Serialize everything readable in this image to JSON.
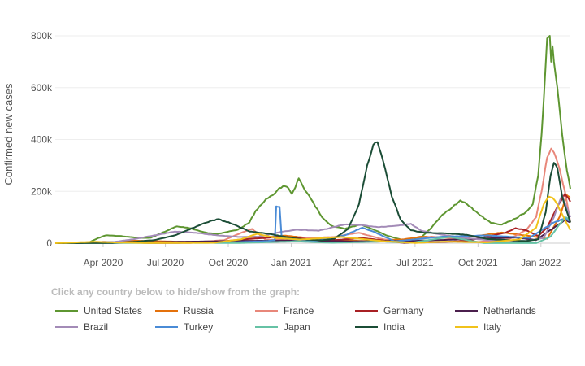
{
  "chart_data": {
    "type": "line",
    "ylabel": "Confirmed new cases",
    "xlabel": "",
    "x_ticks": [
      "Apr 2020",
      "Jul 2020",
      "Oct 2020",
      "Jan 2021",
      "Apr 2021",
      "Jul 2021",
      "Oct 2021",
      "Jan 2022"
    ],
    "y_ticks": [
      "0",
      "200k",
      "400k",
      "600k",
      "800k"
    ],
    "ylim": [
      0,
      800000
    ],
    "xlim": [
      "2020-01-22",
      "2022-02-13"
    ],
    "grid": true,
    "legend_placement": "bottom",
    "series": [
      {
        "name": "United States",
        "color": "#5e9631",
        "points": [
          [
            "2020-01-22",
            0
          ],
          [
            "2020-03-10",
            1000
          ],
          [
            "2020-03-25",
            20000
          ],
          [
            "2020-04-05",
            30000
          ],
          [
            "2020-04-25",
            28000
          ],
          [
            "2020-05-25",
            20000
          ],
          [
            "2020-06-10",
            21000
          ],
          [
            "2020-06-28",
            42000
          ],
          [
            "2020-07-18",
            65000
          ],
          [
            "2020-08-05",
            58000
          ],
          [
            "2020-09-01",
            39000
          ],
          [
            "2020-09-15",
            36000
          ],
          [
            "2020-10-15",
            52000
          ],
          [
            "2020-11-01",
            80000
          ],
          [
            "2020-11-10",
            125000
          ],
          [
            "2020-11-25",
            170000
          ],
          [
            "2020-12-05",
            185000
          ],
          [
            "2020-12-12",
            205000
          ],
          [
            "2020-12-20",
            220000
          ],
          [
            "2020-12-28",
            212000
          ],
          [
            "2021-01-02",
            190000
          ],
          [
            "2021-01-07",
            215000
          ],
          [
            "2021-01-12",
            250000
          ],
          [
            "2021-01-18",
            220000
          ],
          [
            "2021-01-30",
            170000
          ],
          [
            "2021-02-15",
            100000
          ],
          [
            "2021-03-01",
            67000
          ],
          [
            "2021-03-20",
            55000
          ],
          [
            "2021-04-12",
            72000
          ],
          [
            "2021-05-01",
            53000
          ],
          [
            "2021-05-20",
            30000
          ],
          [
            "2021-06-10",
            14000
          ],
          [
            "2021-06-25",
            12000
          ],
          [
            "2021-07-10",
            22000
          ],
          [
            "2021-07-25",
            60000
          ],
          [
            "2021-08-10",
            110000
          ],
          [
            "2021-08-25",
            140000
          ],
          [
            "2021-09-05",
            165000
          ],
          [
            "2021-09-15",
            150000
          ],
          [
            "2021-10-01",
            115000
          ],
          [
            "2021-10-20",
            78000
          ],
          [
            "2021-11-05",
            72000
          ],
          [
            "2021-11-25",
            95000
          ],
          [
            "2021-12-10",
            120000
          ],
          [
            "2021-12-20",
            150000
          ],
          [
            "2021-12-28",
            260000
          ],
          [
            "2022-01-02",
            420000
          ],
          [
            "2022-01-05",
            550000
          ],
          [
            "2022-01-10",
            790000
          ],
          [
            "2022-01-14",
            800000
          ],
          [
            "2022-01-16",
            700000
          ],
          [
            "2022-01-18",
            760000
          ],
          [
            "2022-01-20",
            700000
          ],
          [
            "2022-01-25",
            600000
          ],
          [
            "2022-02-01",
            420000
          ],
          [
            "2022-02-08",
            280000
          ],
          [
            "2022-02-13",
            210000
          ]
        ]
      },
      {
        "name": "Russia",
        "color": "#e4710c",
        "points": [
          [
            "2020-01-22",
            0
          ],
          [
            "2020-04-01",
            500
          ],
          [
            "2020-05-10",
            10000
          ],
          [
            "2020-07-15",
            6000
          ],
          [
            "2020-09-15",
            5500
          ],
          [
            "2020-11-01",
            17000
          ],
          [
            "2020-12-24",
            29000
          ],
          [
            "2021-02-15",
            14000
          ],
          [
            "2021-04-15",
            8500
          ],
          [
            "2021-06-15",
            15000
          ],
          [
            "2021-07-10",
            25000
          ],
          [
            "2021-09-01",
            18000
          ],
          [
            "2021-11-05",
            41000
          ],
          [
            "2021-12-15",
            28000
          ],
          [
            "2022-01-10",
            17000
          ],
          [
            "2022-01-28",
            100000
          ],
          [
            "2022-02-08",
            185000
          ],
          [
            "2022-02-13",
            180000
          ]
        ]
      },
      {
        "name": "France",
        "color": "#e8877a",
        "points": [
          [
            "2020-01-22",
            0
          ],
          [
            "2020-03-25",
            4000
          ],
          [
            "2020-04-15",
            4000
          ],
          [
            "2020-06-15",
            500
          ],
          [
            "2020-08-15",
            3000
          ],
          [
            "2020-09-25",
            12000
          ],
          [
            "2020-10-25",
            45000
          ],
          [
            "2020-11-05",
            55000
          ],
          [
            "2020-11-25",
            12000
          ],
          [
            "2021-01-15",
            18000
          ],
          [
            "2021-03-05",
            24000
          ],
          [
            "2021-03-28",
            35000
          ],
          [
            "2021-04-10",
            40000
          ],
          [
            "2021-05-10",
            18000
          ],
          [
            "2021-06-10",
            4000
          ],
          [
            "2021-07-25",
            25000
          ],
          [
            "2021-08-20",
            20000
          ],
          [
            "2021-10-01",
            5000
          ],
          [
            "2021-11-15",
            15000
          ],
          [
            "2021-12-10",
            50000
          ],
          [
            "2021-12-25",
            100000
          ],
          [
            "2022-01-02",
            200000
          ],
          [
            "2022-01-10",
            330000
          ],
          [
            "2022-01-16",
            365000
          ],
          [
            "2022-01-20",
            350000
          ],
          [
            "2022-01-28",
            290000
          ],
          [
            "2022-02-05",
            200000
          ],
          [
            "2022-02-13",
            80000
          ]
        ]
      },
      {
        "name": "Germany",
        "color": "#a82024",
        "points": [
          [
            "2020-01-22",
            0
          ],
          [
            "2020-04-01",
            5000
          ],
          [
            "2020-06-15",
            500
          ],
          [
            "2020-09-15",
            2000
          ],
          [
            "2020-10-25",
            15000
          ],
          [
            "2020-12-18",
            25000
          ],
          [
            "2021-01-10",
            20000
          ],
          [
            "2021-02-15",
            8000
          ],
          [
            "2021-04-15",
            20000
          ],
          [
            "2021-06-15",
            1000
          ],
          [
            "2021-08-15",
            5000
          ],
          [
            "2021-09-15",
            9000
          ],
          [
            "2021-11-10",
            40000
          ],
          [
            "2021-11-25",
            58000
          ],
          [
            "2021-12-10",
            50000
          ],
          [
            "2021-12-28",
            28000
          ],
          [
            "2022-01-10",
            60000
          ],
          [
            "2022-01-25",
            140000
          ],
          [
            "2022-02-05",
            190000
          ],
          [
            "2022-02-13",
            160000
          ]
        ]
      },
      {
        "name": "Netherlands",
        "color": "#4b1f4d",
        "points": [
          [
            "2020-01-22",
            0
          ],
          [
            "2020-04-05",
            1000
          ],
          [
            "2020-10-20",
            9000
          ],
          [
            "2021-01-01",
            10000
          ],
          [
            "2021-04-01",
            7000
          ],
          [
            "2021-07-15",
            10000
          ],
          [
            "2021-11-25",
            22000
          ],
          [
            "2021-12-25",
            12000
          ],
          [
            "2022-01-20",
            60000
          ],
          [
            "2022-02-05",
            90000
          ],
          [
            "2022-02-13",
            80000
          ]
        ]
      },
      {
        "name": "Brazil",
        "color": "#a38bb7",
        "points": [
          [
            "2020-01-22",
            0
          ],
          [
            "2020-04-15",
            4000
          ],
          [
            "2020-05-15",
            15000
          ],
          [
            "2020-06-15",
            30000
          ],
          [
            "2020-07-15",
            45000
          ],
          [
            "2020-08-15",
            40000
          ],
          [
            "2020-09-15",
            30000
          ],
          [
            "2020-10-15",
            24000
          ],
          [
            "2020-11-15",
            25000
          ],
          [
            "2020-12-20",
            45000
          ],
          [
            "2021-01-10",
            52000
          ],
          [
            "2021-02-10",
            48000
          ],
          [
            "2021-03-20",
            72000
          ],
          [
            "2021-04-10",
            70000
          ],
          [
            "2021-05-10",
            62000
          ],
          [
            "2021-06-10",
            70000
          ],
          [
            "2021-06-25",
            75000
          ],
          [
            "2021-07-10",
            48000
          ],
          [
            "2021-08-10",
            32000
          ],
          [
            "2021-09-10",
            20000
          ],
          [
            "2021-10-15",
            12000
          ],
          [
            "2021-12-10",
            8000
          ],
          [
            "2022-01-05",
            20000
          ],
          [
            "2022-01-20",
            100000
          ],
          [
            "2022-02-01",
            185000
          ],
          [
            "2022-02-13",
            100000
          ]
        ]
      },
      {
        "name": "Turkey",
        "color": "#4a8bd6",
        "points": [
          [
            "2020-01-22",
            0
          ],
          [
            "2020-04-10",
            4000
          ],
          [
            "2020-05-15",
            1500
          ],
          [
            "2020-09-15",
            1500
          ],
          [
            "2020-11-25",
            8000
          ],
          [
            "2020-12-08",
            12000
          ],
          [
            "2020-12-10",
            142000
          ],
          [
            "2020-12-15",
            140000
          ],
          [
            "2020-12-18",
            20000
          ],
          [
            "2021-02-01",
            7000
          ],
          [
            "2021-03-20",
            30000
          ],
          [
            "2021-04-15",
            60000
          ],
          [
            "2021-05-01",
            45000
          ],
          [
            "2021-06-01",
            7000
          ],
          [
            "2021-08-10",
            25000
          ],
          [
            "2021-10-15",
            30000
          ],
          [
            "2021-12-15",
            20000
          ],
          [
            "2022-01-20",
            80000
          ],
          [
            "2022-02-05",
            95000
          ],
          [
            "2022-02-13",
            85000
          ]
        ]
      },
      {
        "name": "Japan",
        "color": "#66c2a5",
        "points": [
          [
            "2020-01-22",
            0
          ],
          [
            "2020-04-10",
            500
          ],
          [
            "2020-08-05",
            1500
          ],
          [
            "2020-10-15",
            700
          ],
          [
            "2021-01-10",
            7000
          ],
          [
            "2021-03-01",
            1500
          ],
          [
            "2021-05-15",
            6500
          ],
          [
            "2021-06-25",
            1500
          ],
          [
            "2021-08-20",
            24000
          ],
          [
            "2021-10-10",
            300
          ],
          [
            "2021-12-25",
            300
          ],
          [
            "2022-01-15",
            25000
          ],
          [
            "2022-02-05",
            100000
          ],
          [
            "2022-02-13",
            90000
          ]
        ]
      },
      {
        "name": "India",
        "color": "#1b4d36",
        "points": [
          [
            "2020-01-22",
            0
          ],
          [
            "2020-04-15",
            1000
          ],
          [
            "2020-05-15",
            5000
          ],
          [
            "2020-06-15",
            12000
          ],
          [
            "2020-07-15",
            30000
          ],
          [
            "2020-08-15",
            64000
          ],
          [
            "2020-09-05",
            86000
          ],
          [
            "2020-09-17",
            93000
          ],
          [
            "2020-10-10",
            72000
          ],
          [
            "2020-11-01",
            45000
          ],
          [
            "2020-12-01",
            36000
          ],
          [
            "2020-12-15",
            28000
          ],
          [
            "2021-01-15",
            15000
          ],
          [
            "2021-02-15",
            11000
          ],
          [
            "2021-03-05",
            17000
          ],
          [
            "2021-03-25",
            55000
          ],
          [
            "2021-04-10",
            150000
          ],
          [
            "2021-04-22",
            300000
          ],
          [
            "2021-05-01",
            380000
          ],
          [
            "2021-05-07",
            390000
          ],
          [
            "2021-05-15",
            320000
          ],
          [
            "2021-05-28",
            180000
          ],
          [
            "2021-06-10",
            90000
          ],
          [
            "2021-06-25",
            50000
          ],
          [
            "2021-07-15",
            40000
          ],
          [
            "2021-08-15",
            38000
          ],
          [
            "2021-09-15",
            32000
          ],
          [
            "2021-10-15",
            16000
          ],
          [
            "2021-12-10",
            8000
          ],
          [
            "2021-12-28",
            15000
          ],
          [
            "2022-01-08",
            120000
          ],
          [
            "2022-01-15",
            260000
          ],
          [
            "2022-01-20",
            310000
          ],
          [
            "2022-01-25",
            290000
          ],
          [
            "2022-02-01",
            180000
          ],
          [
            "2022-02-13",
            80000
          ]
        ]
      },
      {
        "name": "Italy",
        "color": "#f1c21b",
        "points": [
          [
            "2020-01-22",
            0
          ],
          [
            "2020-03-20",
            5500
          ],
          [
            "2020-04-20",
            3000
          ],
          [
            "2020-06-10",
            400
          ],
          [
            "2020-09-10",
            1500
          ],
          [
            "2020-10-20",
            15000
          ],
          [
            "2020-11-12",
            36000
          ],
          [
            "2020-12-10",
            20000
          ],
          [
            "2021-01-15",
            14000
          ],
          [
            "2021-03-15",
            24000
          ],
          [
            "2021-05-15",
            8000
          ],
          [
            "2021-07-01",
            1000
          ],
          [
            "2021-08-15",
            6000
          ],
          [
            "2021-10-15",
            3000
          ],
          [
            "2021-12-01",
            15000
          ],
          [
            "2021-12-25",
            60000
          ],
          [
            "2022-01-05",
            150000
          ],
          [
            "2022-01-12",
            180000
          ],
          [
            "2022-01-18",
            175000
          ],
          [
            "2022-01-25",
            150000
          ],
          [
            "2022-02-05",
            90000
          ],
          [
            "2022-02-13",
            50000
          ]
        ]
      }
    ]
  },
  "legend": {
    "title": "Click any country below to hide/show from the graph:",
    "items": [
      "United States",
      "Russia",
      "France",
      "Germany",
      "Netherlands",
      "Brazil",
      "Turkey",
      "Japan",
      "India",
      "Italy"
    ]
  }
}
